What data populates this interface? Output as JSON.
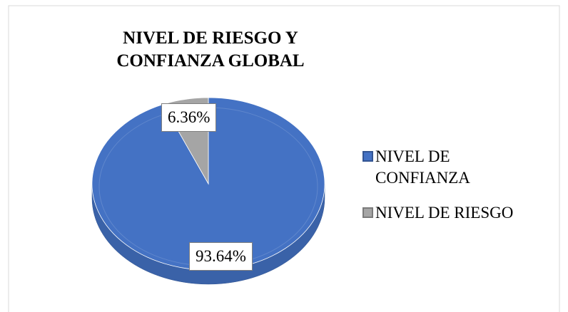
{
  "chart_data": {
    "type": "pie",
    "title": "NIVEL DE RIESGO Y CONFIANZA GLOBAL",
    "categories": [
      "NIVEL DE CONFIANZA",
      "NIVEL DE RIESGO"
    ],
    "values": [
      93.64,
      6.36
    ],
    "value_labels": [
      "93.64%",
      "6.36%"
    ],
    "colors": [
      "#4472c4",
      "#a5a5a5"
    ],
    "legend": "right"
  }
}
